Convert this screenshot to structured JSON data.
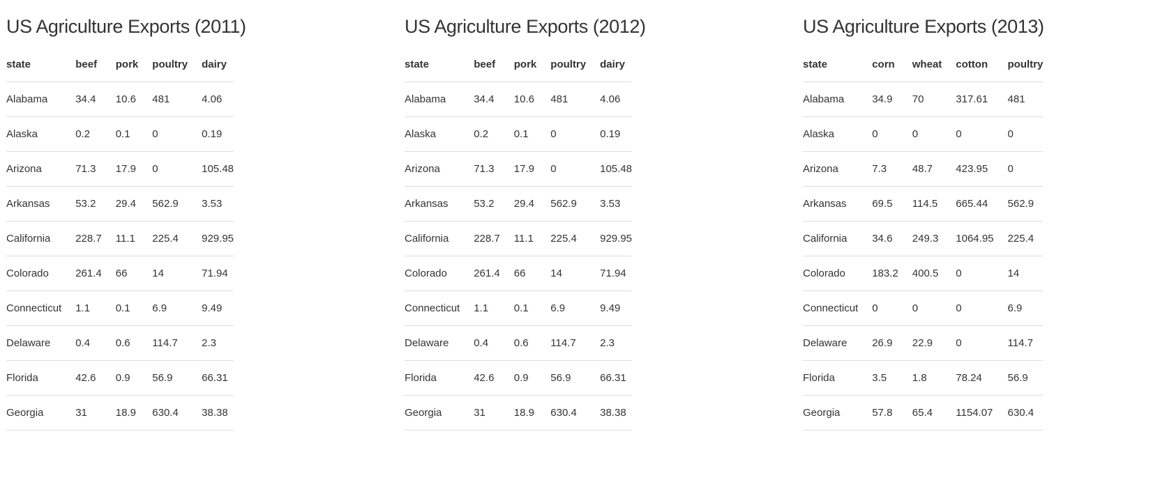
{
  "tables": [
    {
      "title": "US Agriculture Exports (2011)",
      "columns": [
        "state",
        "beef",
        "pork",
        "poultry",
        "dairy"
      ],
      "rows": [
        [
          "Alabama",
          "34.4",
          "10.6",
          "481",
          "4.06"
        ],
        [
          "Alaska",
          "0.2",
          "0.1",
          "0",
          "0.19"
        ],
        [
          "Arizona",
          "71.3",
          "17.9",
          "0",
          "105.48"
        ],
        [
          "Arkansas",
          "53.2",
          "29.4",
          "562.9",
          "3.53"
        ],
        [
          "California",
          "228.7",
          "11.1",
          "225.4",
          "929.95"
        ],
        [
          "Colorado",
          "261.4",
          "66",
          "14",
          "71.94"
        ],
        [
          "Connecticut",
          "1.1",
          "0.1",
          "6.9",
          "9.49"
        ],
        [
          "Delaware",
          "0.4",
          "0.6",
          "114.7",
          "2.3"
        ],
        [
          "Florida",
          "42.6",
          "0.9",
          "56.9",
          "66.31"
        ],
        [
          "Georgia",
          "31",
          "18.9",
          "630.4",
          "38.38"
        ]
      ]
    },
    {
      "title": "US Agriculture Exports (2012)",
      "columns": [
        "state",
        "beef",
        "pork",
        "poultry",
        "dairy"
      ],
      "rows": [
        [
          "Alabama",
          "34.4",
          "10.6",
          "481",
          "4.06"
        ],
        [
          "Alaska",
          "0.2",
          "0.1",
          "0",
          "0.19"
        ],
        [
          "Arizona",
          "71.3",
          "17.9",
          "0",
          "105.48"
        ],
        [
          "Arkansas",
          "53.2",
          "29.4",
          "562.9",
          "3.53"
        ],
        [
          "California",
          "228.7",
          "11.1",
          "225.4",
          "929.95"
        ],
        [
          "Colorado",
          "261.4",
          "66",
          "14",
          "71.94"
        ],
        [
          "Connecticut",
          "1.1",
          "0.1",
          "6.9",
          "9.49"
        ],
        [
          "Delaware",
          "0.4",
          "0.6",
          "114.7",
          "2.3"
        ],
        [
          "Florida",
          "42.6",
          "0.9",
          "56.9",
          "66.31"
        ],
        [
          "Georgia",
          "31",
          "18.9",
          "630.4",
          "38.38"
        ]
      ]
    },
    {
      "title": "US Agriculture Exports (2013)",
      "columns": [
        "state",
        "corn",
        "wheat",
        "cotton",
        "poultry"
      ],
      "rows": [
        [
          "Alabama",
          "34.9",
          "70",
          "317.61",
          "481"
        ],
        [
          "Alaska",
          "0",
          "0",
          "0",
          "0"
        ],
        [
          "Arizona",
          "7.3",
          "48.7",
          "423.95",
          "0"
        ],
        [
          "Arkansas",
          "69.5",
          "114.5",
          "665.44",
          "562.9"
        ],
        [
          "California",
          "34.6",
          "249.3",
          "1064.95",
          "225.4"
        ],
        [
          "Colorado",
          "183.2",
          "400.5",
          "0",
          "14"
        ],
        [
          "Connecticut",
          "0",
          "0",
          "0",
          "6.9"
        ],
        [
          "Delaware",
          "26.9",
          "22.9",
          "0",
          "114.7"
        ],
        [
          "Florida",
          "3.5",
          "1.8",
          "78.24",
          "56.9"
        ],
        [
          "Georgia",
          "57.8",
          "65.4",
          "1154.07",
          "630.4"
        ]
      ]
    }
  ]
}
